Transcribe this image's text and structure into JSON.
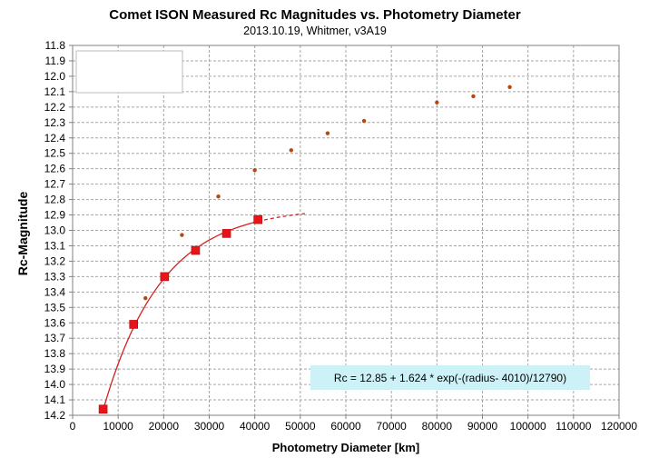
{
  "chart_data": {
    "type": "scatter",
    "title": "Comet ISON Measured Rc Magnitudes vs. Photometry Diameter",
    "subtitle": "2013.10.19,  Whitmer, v3A19",
    "xlabel": "Photometry Diameter  [km]",
    "ylabel": "Rc-Magnitude",
    "xlim": [
      0,
      120000
    ],
    "ylim": [
      11.8,
      14.2
    ],
    "y_inverted": true,
    "grid": true,
    "x_ticks": [
      0,
      10000,
      20000,
      30000,
      40000,
      50000,
      60000,
      70000,
      80000,
      90000,
      100000,
      110000,
      120000
    ],
    "y_ticks": [
      11.8,
      11.9,
      12.0,
      12.1,
      12.2,
      12.3,
      12.4,
      12.5,
      12.6,
      12.7,
      12.8,
      12.9,
      13.0,
      13.1,
      13.2,
      13.3,
      13.4,
      13.5,
      13.6,
      13.7,
      13.8,
      13.9,
      14.0,
      14.1,
      14.2
    ],
    "legend_box": "top-left",
    "series": [
      {
        "marker": "small-dot",
        "color": "#b5470f",
        "x": [
          16000,
          24000,
          32000,
          40000,
          48000,
          56000,
          64000,
          80000,
          88000,
          96000
        ],
        "y": [
          13.44,
          13.03,
          12.78,
          12.61,
          12.48,
          12.37,
          12.29,
          12.17,
          12.13,
          12.07
        ]
      },
      {
        "marker": "square",
        "color": "#e8141a",
        "x": [
          6700,
          13400,
          20200,
          27000,
          33800,
          40700
        ],
        "y": [
          14.16,
          13.61,
          13.3,
          13.13,
          13.02,
          12.93
        ]
      }
    ],
    "fit": {
      "color": "#d62020",
      "formula_params": {
        "a": 12.85,
        "b": 1.624,
        "r0": 4010,
        "scale": 12790
      },
      "x_range": [
        6700,
        40700
      ],
      "extrapolated_x_range": [
        40700,
        51000
      ],
      "annotation": "Rc = 12.85  + 1.624  * exp(-(radius- 4010)/12790)",
      "annotation_background": "#ccf2f8"
    }
  }
}
